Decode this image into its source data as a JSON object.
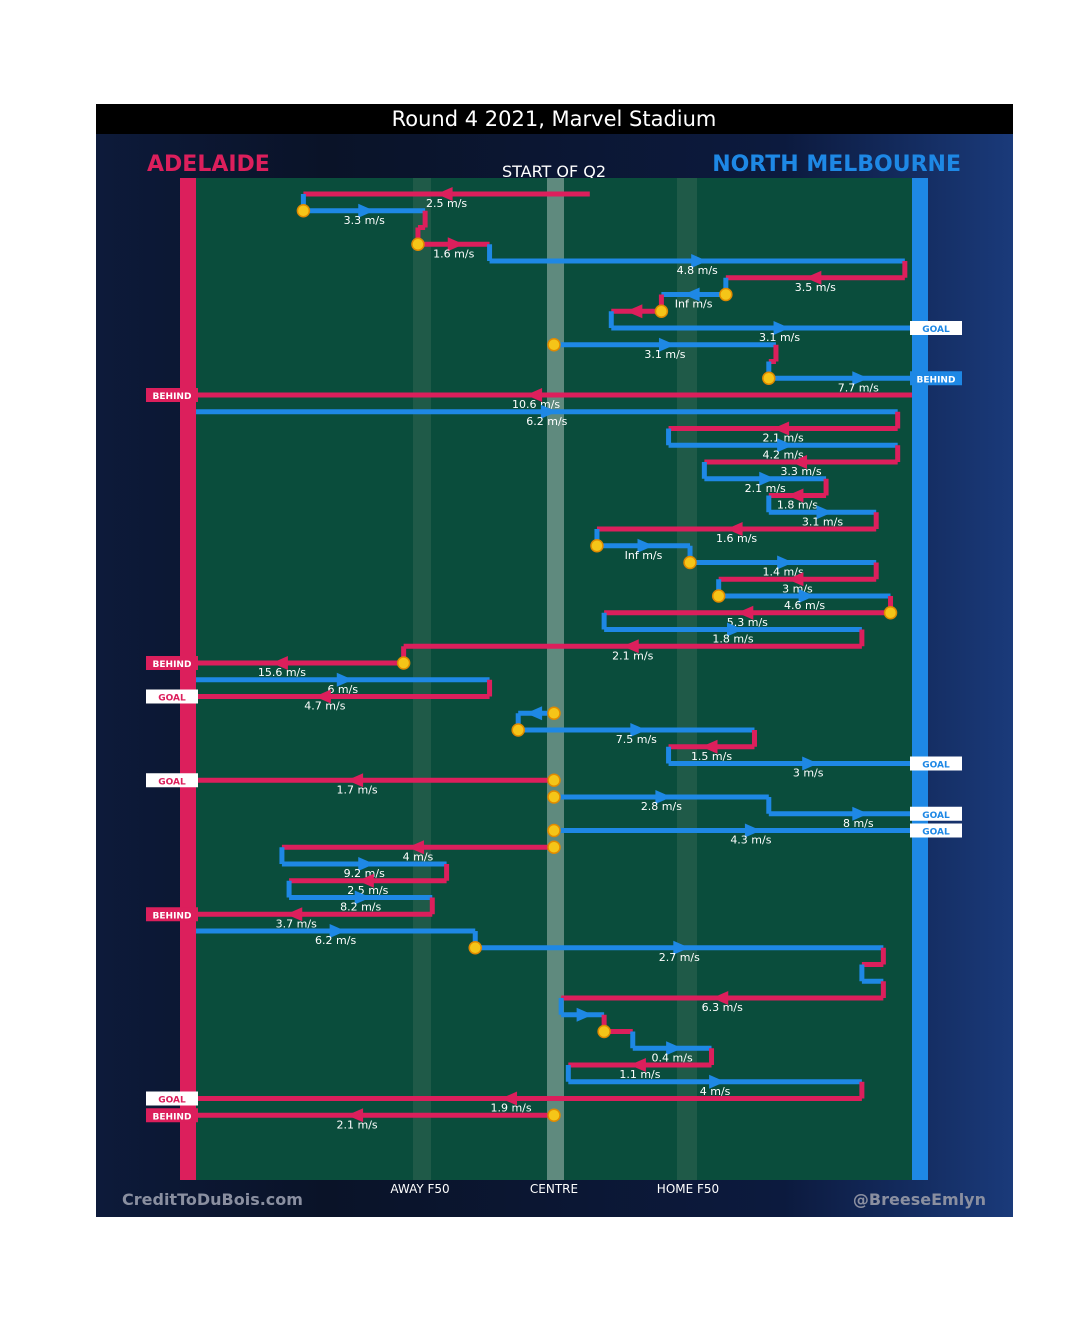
{
  "chart_data": {
    "type": "line",
    "title": "Round 4 2021, Marvel Stadium",
    "subtitle": "START OF Q2",
    "teams": {
      "left": {
        "name": "ADELAIDE",
        "color": "#dc1f5c"
      },
      "right": {
        "name": "NORTH MELBOURNE",
        "color": "#1e88e5"
      }
    },
    "field_markers": {
      "away_f50": "AWAY F50",
      "centre": "CENTRE",
      "home_f50": "HOME F50"
    },
    "credits": {
      "left": "CreditToDuBois.com",
      "right": "@BreeseEmlyn"
    },
    "scoring_labels": {
      "goal": "GOAL",
      "behind": "BEHIND"
    },
    "chains": [
      {
        "team": "adelaide",
        "row": 0,
        "x0": 0.55,
        "x1": 0.15,
        "speed": "2.5 m/s"
      },
      {
        "team": "north",
        "row": 1,
        "x0": 0.15,
        "x1": 0.32,
        "speed": "3.3 m/s"
      },
      {
        "team": "adelaide",
        "row": 2,
        "x0": 0.32,
        "x1": 0.31,
        "speed": ""
      },
      {
        "team": "adelaide",
        "row": 3,
        "x0": 0.31,
        "x1": 0.41,
        "speed": "1.6 m/s"
      },
      {
        "team": "north",
        "row": 4,
        "x0": 0.41,
        "x1": 0.99,
        "speed": "4.8 m/s"
      },
      {
        "team": "adelaide",
        "row": 5,
        "x0": 0.99,
        "x1": 0.74,
        "speed": "3.5 m/s"
      },
      {
        "team": "north",
        "row": 6,
        "x0": 0.74,
        "x1": 0.65,
        "speed": "Inf m/s"
      },
      {
        "team": "adelaide",
        "row": 7,
        "x0": 0.65,
        "x1": 0.58,
        "speed": ""
      },
      {
        "team": "north",
        "row": 8,
        "x0": 0.58,
        "x1": 1.05,
        "speed": "3.1 m/s",
        "result": "GOAL"
      },
      {
        "team": "north",
        "row": 9,
        "x0": 0.5,
        "x1": 0.81,
        "speed": "3.1 m/s"
      },
      {
        "team": "adelaide",
        "row": 10,
        "x0": 0.81,
        "x1": 0.8,
        "speed": ""
      },
      {
        "team": "north",
        "row": 11,
        "x0": 0.8,
        "x1": 1.05,
        "speed": "7.7 m/s",
        "result": "BEHIND"
      },
      {
        "team": "adelaide",
        "row": 12,
        "x0": 1.0,
        "x1": -0.05,
        "speed": "10.6 m/s",
        "result": "BEHIND"
      },
      {
        "team": "north",
        "row": 13,
        "x0": 0.0,
        "x1": 0.98,
        "speed": "6.2 m/s"
      },
      {
        "team": "adelaide",
        "row": 14,
        "x0": 0.98,
        "x1": 0.66,
        "speed": "2.1 m/s"
      },
      {
        "team": "north",
        "row": 15,
        "x0": 0.66,
        "x1": 0.98,
        "speed": "4.2 m/s"
      },
      {
        "team": "adelaide",
        "row": 16,
        "x0": 0.98,
        "x1": 0.71,
        "speed": "3.3 m/s"
      },
      {
        "team": "north",
        "row": 17,
        "x0": 0.71,
        "x1": 0.88,
        "speed": "2.1 m/s"
      },
      {
        "team": "adelaide",
        "row": 18,
        "x0": 0.88,
        "x1": 0.8,
        "speed": "1.8 m/s"
      },
      {
        "team": "north",
        "row": 19,
        "x0": 0.8,
        "x1": 0.95,
        "speed": "3.1 m/s"
      },
      {
        "team": "adelaide",
        "row": 20,
        "x0": 0.95,
        "x1": 0.56,
        "speed": "1.6 m/s"
      },
      {
        "team": "north",
        "row": 21,
        "x0": 0.56,
        "x1": 0.69,
        "speed": "Inf m/s"
      },
      {
        "team": "north",
        "row": 22,
        "x0": 0.69,
        "x1": 0.95,
        "speed": "1.4 m/s"
      },
      {
        "team": "adelaide",
        "row": 23,
        "x0": 0.95,
        "x1": 0.73,
        "speed": "3 m/s"
      },
      {
        "team": "north",
        "row": 24,
        "x0": 0.73,
        "x1": 0.97,
        "speed": "4.6 m/s"
      },
      {
        "team": "adelaide",
        "row": 25,
        "x0": 0.97,
        "x1": 0.57,
        "speed": "5.3 m/s"
      },
      {
        "team": "north",
        "row": 26,
        "x0": 0.57,
        "x1": 0.93,
        "speed": "1.8 m/s"
      },
      {
        "team": "adelaide",
        "row": 27,
        "x0": 0.93,
        "x1": 0.29,
        "speed": "2.1 m/s"
      },
      {
        "team": "adelaide",
        "row": 28,
        "x0": 0.29,
        "x1": -0.05,
        "speed": "15.6 m/s",
        "result": "BEHIND"
      },
      {
        "team": "north",
        "row": 29,
        "x0": 0.0,
        "x1": 0.41,
        "speed": "6 m/s"
      },
      {
        "team": "adelaide",
        "row": 30,
        "x0": 0.41,
        "x1": -0.05,
        "speed": "4.7 m/s",
        "result": "GOAL"
      },
      {
        "team": "north",
        "row": 31,
        "x0": 0.5,
        "x1": 0.45,
        "speed": ""
      },
      {
        "team": "north",
        "row": 32,
        "x0": 0.45,
        "x1": 0.78,
        "speed": "7.5 m/s"
      },
      {
        "team": "adelaide",
        "row": 33,
        "x0": 0.78,
        "x1": 0.66,
        "speed": "1.5 m/s"
      },
      {
        "team": "north",
        "row": 34,
        "x0": 0.66,
        "x1": 1.05,
        "speed": "3 m/s",
        "result": "GOAL"
      },
      {
        "team": "adelaide",
        "row": 35,
        "x0": 0.5,
        "x1": -0.05,
        "speed": "1.7 m/s",
        "result": "GOAL"
      },
      {
        "team": "north",
        "row": 36,
        "x0": 0.5,
        "x1": 0.8,
        "speed": "2.8 m/s"
      },
      {
        "team": "north",
        "row": 37,
        "x0": 0.8,
        "x1": 1.05,
        "speed": "8 m/s",
        "result": "GOAL"
      },
      {
        "team": "north",
        "row": 38,
        "x0": 0.5,
        "x1": 1.05,
        "speed": "4.3 m/s",
        "result": "GOAL"
      },
      {
        "team": "adelaide",
        "row": 39,
        "x0": 0.5,
        "x1": 0.12,
        "speed": "4 m/s"
      },
      {
        "team": "north",
        "row": 40,
        "x0": 0.12,
        "x1": 0.35,
        "speed": "9.2 m/s"
      },
      {
        "team": "adelaide",
        "row": 41,
        "x0": 0.35,
        "x1": 0.13,
        "speed": "2.5 m/s"
      },
      {
        "team": "north",
        "row": 42,
        "x0": 0.13,
        "x1": 0.33,
        "speed": "8.2 m/s"
      },
      {
        "team": "adelaide",
        "row": 43,
        "x0": 0.33,
        "x1": -0.05,
        "speed": "3.7 m/s",
        "result": "BEHIND"
      },
      {
        "team": "north",
        "row": 44,
        "x0": 0.0,
        "x1": 0.39,
        "speed": "6.2 m/s"
      },
      {
        "team": "north",
        "row": 45,
        "x0": 0.39,
        "x1": 0.96,
        "speed": "2.7 m/s"
      },
      {
        "team": "adelaide",
        "row": 46,
        "x0": 0.96,
        "x1": 0.93,
        "speed": ""
      },
      {
        "team": "north",
        "row": 47,
        "x0": 0.93,
        "x1": 0.96,
        "speed": ""
      },
      {
        "team": "adelaide",
        "row": 48,
        "x0": 0.96,
        "x1": 0.51,
        "speed": "6.3 m/s"
      },
      {
        "team": "north",
        "row": 49,
        "x0": 0.51,
        "x1": 0.57,
        "speed": ""
      },
      {
        "team": "adelaide",
        "row": 50,
        "x0": 0.57,
        "x1": 0.61,
        "speed": ""
      },
      {
        "team": "north",
        "row": 51,
        "x0": 0.61,
        "x1": 0.72,
        "speed": "0.4 m/s"
      },
      {
        "team": "adelaide",
        "row": 52,
        "x0": 0.72,
        "x1": 0.52,
        "speed": "1.1 m/s"
      },
      {
        "team": "north",
        "row": 53,
        "x0": 0.52,
        "x1": 0.93,
        "speed": "4 m/s"
      },
      {
        "team": "adelaide",
        "row": 54,
        "x0": 0.93,
        "x1": -0.05,
        "speed": "1.9 m/s",
        "result": "GOAL"
      },
      {
        "team": "adelaide",
        "row": 55,
        "x0": 0.5,
        "x1": -0.05,
        "speed": "2.1 m/s",
        "result": "BEHIND"
      }
    ]
  }
}
